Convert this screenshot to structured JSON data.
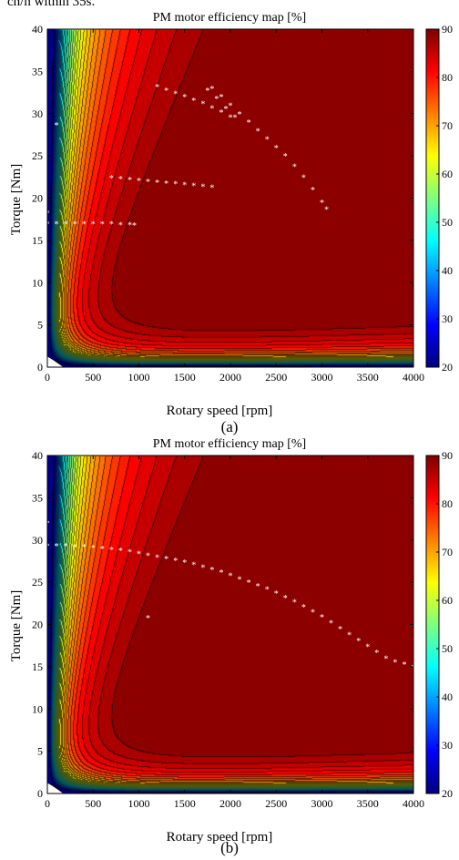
{
  "top_fragment": "ch/h within 35s.",
  "colormap": {
    "name": "jet",
    "stops": [
      "#00007f",
      "#0000ff",
      "#007fff",
      "#00ffff",
      "#7fff7f",
      "#ffff00",
      "#ff7f00",
      "#ff0000",
      "#7f0000"
    ]
  },
  "chart_data": [
    {
      "type": "heatmap",
      "panel_label": "(a)",
      "title": "PM motor efficiency map [%]",
      "xlabel": "Rotary speed [rpm]",
      "ylabel": "Torque [Nm]",
      "xlim": [
        0,
        4000
      ],
      "ylim": [
        0,
        40
      ],
      "x_ticks": [
        0,
        500,
        1000,
        1500,
        2000,
        2500,
        3000,
        3500,
        4000
      ],
      "y_ticks": [
        0,
        5,
        10,
        15,
        20,
        25,
        30,
        35,
        40
      ],
      "colorbar": {
        "min": 20,
        "max": 90,
        "ticks": [
          20,
          30,
          40,
          50,
          60,
          70,
          80,
          90
        ]
      },
      "contour_levels": 36,
      "operating_points": [
        [
          100,
          28.7
        ],
        [
          0,
          18.3
        ],
        [
          0,
          17.0
        ],
        [
          100,
          17.0
        ],
        [
          200,
          17.0
        ],
        [
          300,
          17.0
        ],
        [
          400,
          17.0
        ],
        [
          500,
          17.0
        ],
        [
          600,
          17.0
        ],
        [
          700,
          17.0
        ],
        [
          800,
          16.9
        ],
        [
          900,
          16.9
        ],
        [
          950,
          16.8
        ],
        [
          700,
          22.4
        ],
        [
          800,
          22.3
        ],
        [
          900,
          22.2
        ],
        [
          1000,
          22.1
        ],
        [
          1100,
          22.0
        ],
        [
          1200,
          21.9
        ],
        [
          1300,
          21.8
        ],
        [
          1400,
          21.7
        ],
        [
          1500,
          21.6
        ],
        [
          1600,
          21.5
        ],
        [
          1700,
          21.4
        ],
        [
          1800,
          21.3
        ],
        [
          1200,
          33.2
        ],
        [
          1300,
          32.8
        ],
        [
          1400,
          32.4
        ],
        [
          1500,
          32.0
        ],
        [
          1600,
          31.6
        ],
        [
          1700,
          31.2
        ],
        [
          1800,
          30.7
        ],
        [
          1900,
          30.2
        ],
        [
          2000,
          29.6
        ],
        [
          1800,
          33.0
        ],
        [
          1900,
          32.0
        ],
        [
          2000,
          31.0
        ],
        [
          2100,
          30.0
        ],
        [
          2200,
          29.0
        ],
        [
          2300,
          28.0
        ],
        [
          2400,
          27.0
        ],
        [
          2500,
          26.0
        ],
        [
          2600,
          25.0
        ],
        [
          2700,
          23.8
        ],
        [
          2800,
          22.5
        ],
        [
          2900,
          21.0
        ],
        [
          3000,
          19.5
        ],
        [
          3050,
          18.7
        ],
        [
          1750,
          32.8
        ],
        [
          1850,
          31.8
        ],
        [
          1950,
          30.6
        ],
        [
          2050,
          29.6
        ]
      ]
    },
    {
      "type": "heatmap",
      "panel_label": "(b)",
      "title": "PM motor efficiency map [%]",
      "xlabel": "Rotary speed [rpm]",
      "ylabel": "Torque [Nm]",
      "xlim": [
        0,
        4000
      ],
      "ylim": [
        0,
        40
      ],
      "x_ticks": [
        0,
        500,
        1000,
        1500,
        2000,
        2500,
        3000,
        3500,
        4000
      ],
      "y_ticks": [
        0,
        5,
        10,
        15,
        20,
        25,
        30,
        35,
        40
      ],
      "colorbar": {
        "min": 20,
        "max": 90,
        "ticks": [
          20,
          30,
          40,
          50,
          60,
          70,
          80,
          90
        ]
      },
      "contour_levels": 36,
      "operating_points": [
        [
          0,
          32.0
        ],
        [
          1100,
          20.8
        ],
        [
          0,
          29.3
        ],
        [
          100,
          29.3
        ],
        [
          200,
          29.3
        ],
        [
          300,
          29.2
        ],
        [
          400,
          29.2
        ],
        [
          500,
          29.1
        ],
        [
          600,
          29.0
        ],
        [
          700,
          28.9
        ],
        [
          800,
          28.8
        ],
        [
          900,
          28.6
        ],
        [
          1000,
          28.4
        ],
        [
          1100,
          28.2
        ],
        [
          1200,
          28.0
        ],
        [
          1300,
          27.8
        ],
        [
          1400,
          27.6
        ],
        [
          1500,
          27.4
        ],
        [
          1600,
          27.1
        ],
        [
          1700,
          26.8
        ],
        [
          1800,
          26.5
        ],
        [
          1900,
          26.2
        ],
        [
          2000,
          25.8
        ],
        [
          2100,
          25.4
        ],
        [
          2200,
          25.0
        ],
        [
          2300,
          24.6
        ],
        [
          2400,
          24.2
        ],
        [
          2500,
          23.7
        ],
        [
          2600,
          23.2
        ],
        [
          2700,
          22.7
        ],
        [
          2800,
          22.1
        ],
        [
          2900,
          21.5
        ],
        [
          3000,
          20.9
        ],
        [
          3100,
          20.2
        ],
        [
          3200,
          19.5
        ],
        [
          3300,
          18.8
        ],
        [
          3400,
          18.1
        ],
        [
          3500,
          17.4
        ],
        [
          3600,
          16.7
        ],
        [
          3700,
          16.0
        ],
        [
          3800,
          15.6
        ],
        [
          3900,
          15.3
        ],
        [
          4000,
          15.0
        ]
      ]
    }
  ]
}
